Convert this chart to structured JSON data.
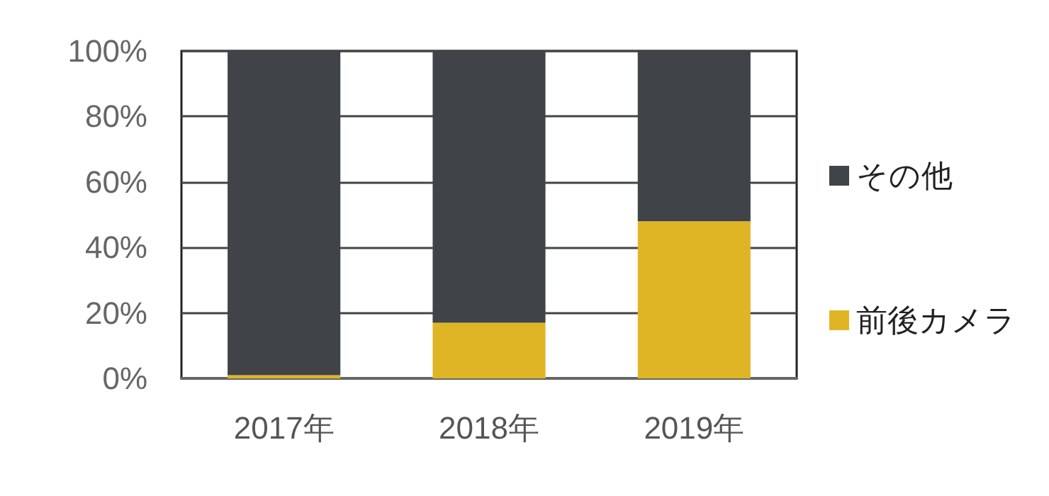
{
  "chart_data": {
    "type": "bar",
    "stacked": true,
    "categories": [
      "2017年",
      "2018年",
      "2019年"
    ],
    "series": [
      {
        "name": "前後カメラ",
        "color": "#e0b525",
        "values": [
          1,
          17,
          48
        ]
      },
      {
        "name": "その他",
        "color": "#404347",
        "values": [
          99,
          83,
          52
        ]
      }
    ],
    "ylim": [
      0,
      100
    ],
    "yticks": [
      {
        "value": 0,
        "label": "0%"
      },
      {
        "value": 20,
        "label": "20%"
      },
      {
        "value": 40,
        "label": "40%"
      },
      {
        "value": 60,
        "label": "60%"
      },
      {
        "value": 80,
        "label": "80%"
      },
      {
        "value": 100,
        "label": "100%"
      }
    ],
    "grid": "y",
    "legend": "right"
  }
}
